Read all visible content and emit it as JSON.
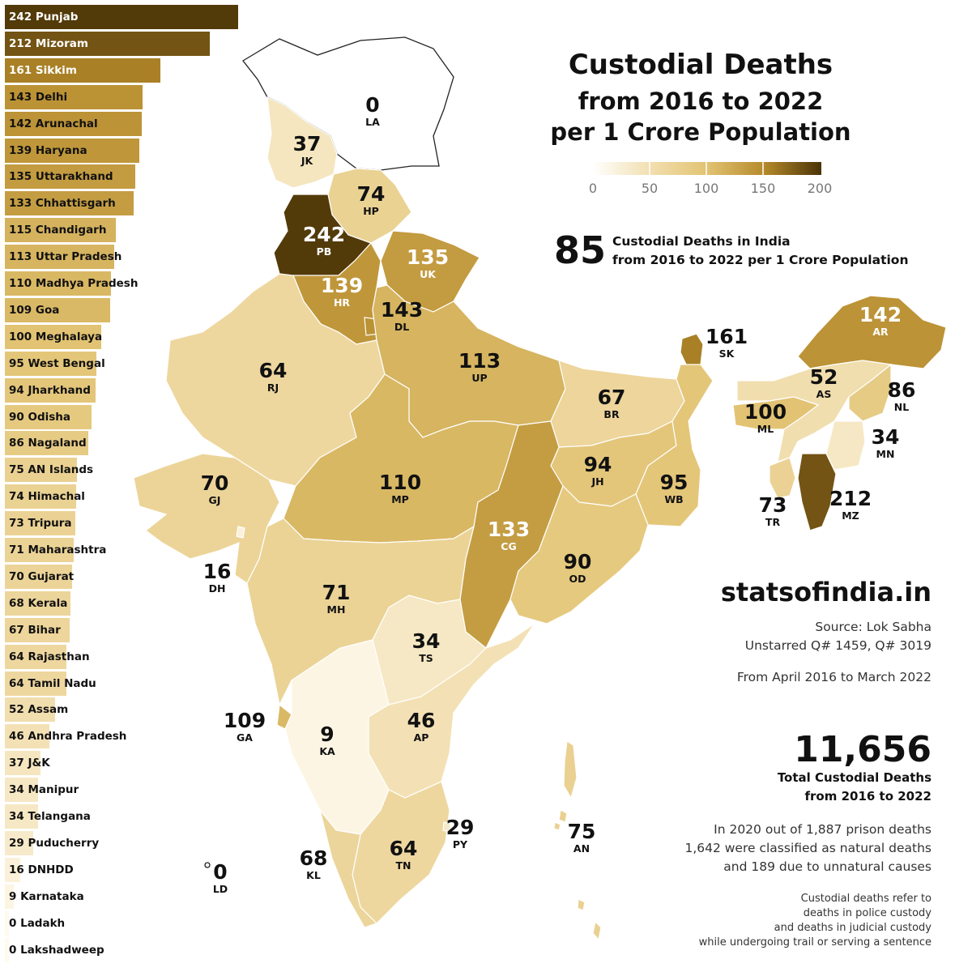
{
  "header": {
    "title": "Custodial Deaths",
    "subtitle1": "from 2016 to 2022",
    "subtitle2": "per 1 Crore Population"
  },
  "legend": {
    "ticks": [
      "0",
      "50",
      "100",
      "150",
      "200"
    ],
    "colors": [
      "#fdf6e6",
      "#f2dfb0",
      "#e5c77e",
      "#d2ab4c",
      "#b58a2a",
      "#4b3306"
    ]
  },
  "national": {
    "value": "85",
    "line1": "Custodial Deaths in India",
    "line2": "from 2016 to 2022 per 1 Crore Population"
  },
  "brand": "statsofindia.in",
  "source": {
    "line1": "Source: Lok Sabha",
    "line2": "Unstarred Q# 1459, Q# 3019",
    "period": "From April 2016 to March 2022"
  },
  "total": {
    "value": "11,656",
    "line1": "Total Custodial Deaths",
    "line2": "from 2016 to 2022"
  },
  "prison": {
    "line1": "In 2020 out of 1,887 prison deaths",
    "line2": "1,642 were classified as natural deaths",
    "line3": "and 189 due to unnatural causes"
  },
  "definition": {
    "line1": "Custodial deaths refer to",
    "line2": "deaths in police custody",
    "line3": "and deaths in judicial custody",
    "line4": "while undergoing trail or serving a sentence"
  },
  "chart_data": {
    "type": "bar",
    "categories": [
      "Punjab",
      "Mizoram",
      "Sikkim",
      "Delhi",
      "Arunachal",
      "Haryana",
      "Uttarakhand",
      "Chhattisgarh",
      "Chandigarh",
      "Uttar Pradesh",
      "Madhya Pradesh",
      "Goa",
      "Meghalaya",
      "West Bengal",
      "Jharkhand",
      "Odisha",
      "Nagaland",
      "AN Islands",
      "Himachal",
      "Tripura",
      "Maharashtra",
      "Gujarat",
      "Kerala",
      "Bihar",
      "Rajasthan",
      "Tamil Nadu",
      "Assam",
      "Andhra Pradesh",
      "J&K",
      "Manipur",
      "Telangana",
      "Puducherry",
      "DNHDD",
      "Karnataka",
      "Ladakh",
      "Lakshadweep"
    ],
    "values": [
      242,
      212,
      161,
      143,
      142,
      139,
      135,
      133,
      115,
      113,
      110,
      109,
      100,
      95,
      94,
      90,
      86,
      75,
      74,
      73,
      71,
      70,
      68,
      67,
      64,
      64,
      52,
      46,
      37,
      34,
      34,
      29,
      16,
      9,
      0,
      0
    ],
    "xlim": [
      0,
      250
    ]
  },
  "map": {
    "states": [
      {
        "code": "LA",
        "value": "0"
      },
      {
        "code": "JK",
        "value": "37"
      },
      {
        "code": "HP",
        "value": "74"
      },
      {
        "code": "PB",
        "value": "242"
      },
      {
        "code": "UK",
        "value": "135"
      },
      {
        "code": "HR",
        "value": "139"
      },
      {
        "code": "DL",
        "value": "143"
      },
      {
        "code": "RJ",
        "value": "64"
      },
      {
        "code": "UP",
        "value": "113"
      },
      {
        "code": "SK",
        "value": "161"
      },
      {
        "code": "AR",
        "value": "142"
      },
      {
        "code": "AS",
        "value": "52"
      },
      {
        "code": "NL",
        "value": "86"
      },
      {
        "code": "ML",
        "value": "100"
      },
      {
        "code": "MN",
        "value": "34"
      },
      {
        "code": "TR",
        "value": "73"
      },
      {
        "code": "MZ",
        "value": "212"
      },
      {
        "code": "BR",
        "value": "67"
      },
      {
        "code": "JH",
        "value": "94"
      },
      {
        "code": "WB",
        "value": "95"
      },
      {
        "code": "GJ",
        "value": "70"
      },
      {
        "code": "MP",
        "value": "110"
      },
      {
        "code": "CG",
        "value": "133"
      },
      {
        "code": "OD",
        "value": "90"
      },
      {
        "code": "DH",
        "value": "16"
      },
      {
        "code": "MH",
        "value": "71"
      },
      {
        "code": "TS",
        "value": "34"
      },
      {
        "code": "GA",
        "value": "109"
      },
      {
        "code": "KA",
        "value": "9"
      },
      {
        "code": "AP",
        "value": "46"
      },
      {
        "code": "PY",
        "value": "29"
      },
      {
        "code": "TN",
        "value": "64"
      },
      {
        "code": "KL",
        "value": "68"
      },
      {
        "code": "LD",
        "value": "0"
      },
      {
        "code": "AN",
        "value": "75"
      }
    ]
  }
}
